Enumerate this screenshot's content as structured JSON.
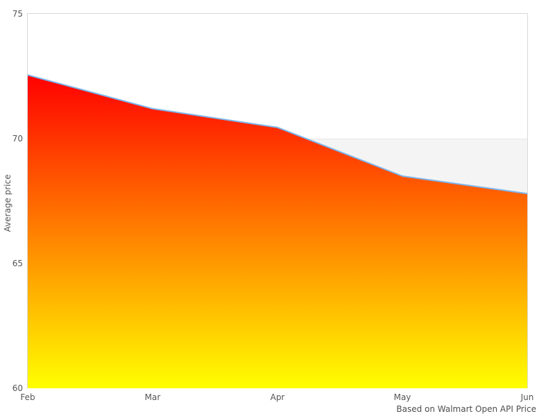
{
  "chart_data": {
    "type": "area",
    "title": "",
    "xlabel": "",
    "ylabel": "Average price",
    "categories": [
      "Feb",
      "Mar",
      "Apr",
      "May",
      "Jun"
    ],
    "series": [
      {
        "name": "Average price",
        "values": [
          72.55,
          71.2,
          70.45,
          68.5,
          67.8
        ]
      }
    ],
    "ylim": [
      60,
      75
    ],
    "yticks": [
      60,
      65,
      70,
      75
    ],
    "legend": "none",
    "grid": "plot border top/left/right only, gridline at 70 as band edge",
    "plot_band": {
      "from": 60,
      "to": 70,
      "color": "#f4f4f4"
    },
    "line_color": "#7cb5ec",
    "line_width": 2,
    "fill_gradient": [
      "#ff0000",
      "#ffff00"
    ],
    "border_color": "#d8d8d8"
  },
  "caption": "Based on Walmart Open API Price"
}
